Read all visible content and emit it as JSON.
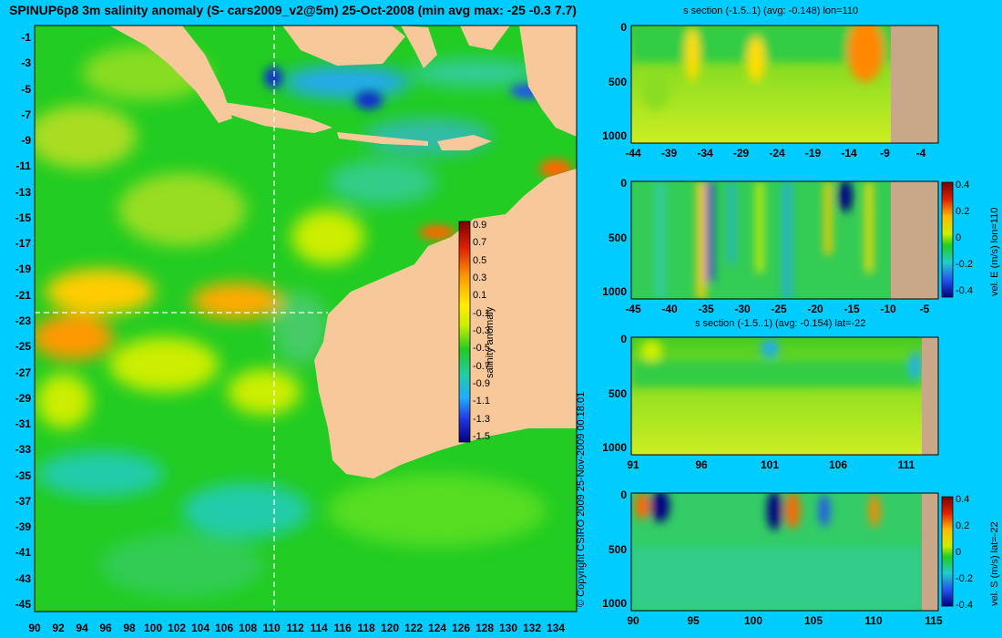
{
  "title": "SPINUP6p8 3m salinity anomaly (S- cars2009_v2@5m) 25-Oct-2008 (min avg max: -25 -0.3 7.7)",
  "map": {
    "lat_ticks": [
      "-1",
      "-3",
      "-5",
      "-7",
      "-9",
      "-11",
      "-13",
      "-15",
      "-17",
      "-19",
      "-21",
      "-23",
      "-25",
      "-27",
      "-29",
      "-31",
      "-33",
      "-35",
      "-37",
      "-39",
      "-41",
      "-43",
      "-45"
    ],
    "lon_ticks": [
      "90",
      "92",
      "94",
      "96",
      "98",
      "100",
      "102",
      "104",
      "106",
      "108",
      "110",
      "112",
      "114",
      "116",
      "118",
      "120",
      "122",
      "124",
      "126",
      "128",
      "130",
      "132",
      "134"
    ],
    "colorbar": {
      "ticks": [
        "0.9",
        "0.7",
        "0.5",
        "0.3",
        "0.1",
        "-0.1",
        "-0.3",
        "-0.5",
        "-0.7",
        "-0.9",
        "-1.1",
        "-1.3",
        "-1.5"
      ],
      "label": "salinity anomaly"
    },
    "copyright": "© Copyright CSIRO 2009  25-Nov-2009 00:18:01"
  },
  "panels": [
    {
      "title": "s section (-1.5..1) (avg: -0.148) lon=110",
      "y_ticks": [
        "0",
        "500",
        "1000"
      ],
      "x_ticks": [
        "-44",
        "-39",
        "-34",
        "-29",
        "-24",
        "-19",
        "-14",
        "-9",
        "-4"
      ]
    },
    {
      "title": "",
      "y_ticks": [
        "0",
        "500",
        "1000"
      ],
      "x_ticks": [
        "-45",
        "-40",
        "-35",
        "-30",
        "-25",
        "-20",
        "-15",
        "-10",
        "-5"
      ],
      "colorbar": {
        "ticks": [
          "0.4",
          "0.2",
          "0",
          "-0.2",
          "-0.4"
        ],
        "label": "vel. E (m/s) lon=110"
      }
    },
    {
      "title": "s section (-1.5..1) (avg: -0.154) lat=-22",
      "y_ticks": [
        "0",
        "500",
        "1000"
      ],
      "x_ticks": [
        "91",
        "96",
        "101",
        "106",
        "111"
      ]
    },
    {
      "title": "",
      "y_ticks": [
        "0",
        "500",
        "1000"
      ],
      "x_ticks": [
        "90",
        "95",
        "100",
        "105",
        "110",
        "115"
      ],
      "colorbar": {
        "ticks": [
          "0.4",
          "0.2",
          "0",
          "-0.2",
          "-0.4"
        ],
        "label": "vel. S (m/s) lat=-22"
      }
    }
  ],
  "colors": {
    "background": "#00ccff",
    "land": "#f7c99a",
    "section_land": "#c8a888",
    "ocean_base": "#22cc22"
  }
}
